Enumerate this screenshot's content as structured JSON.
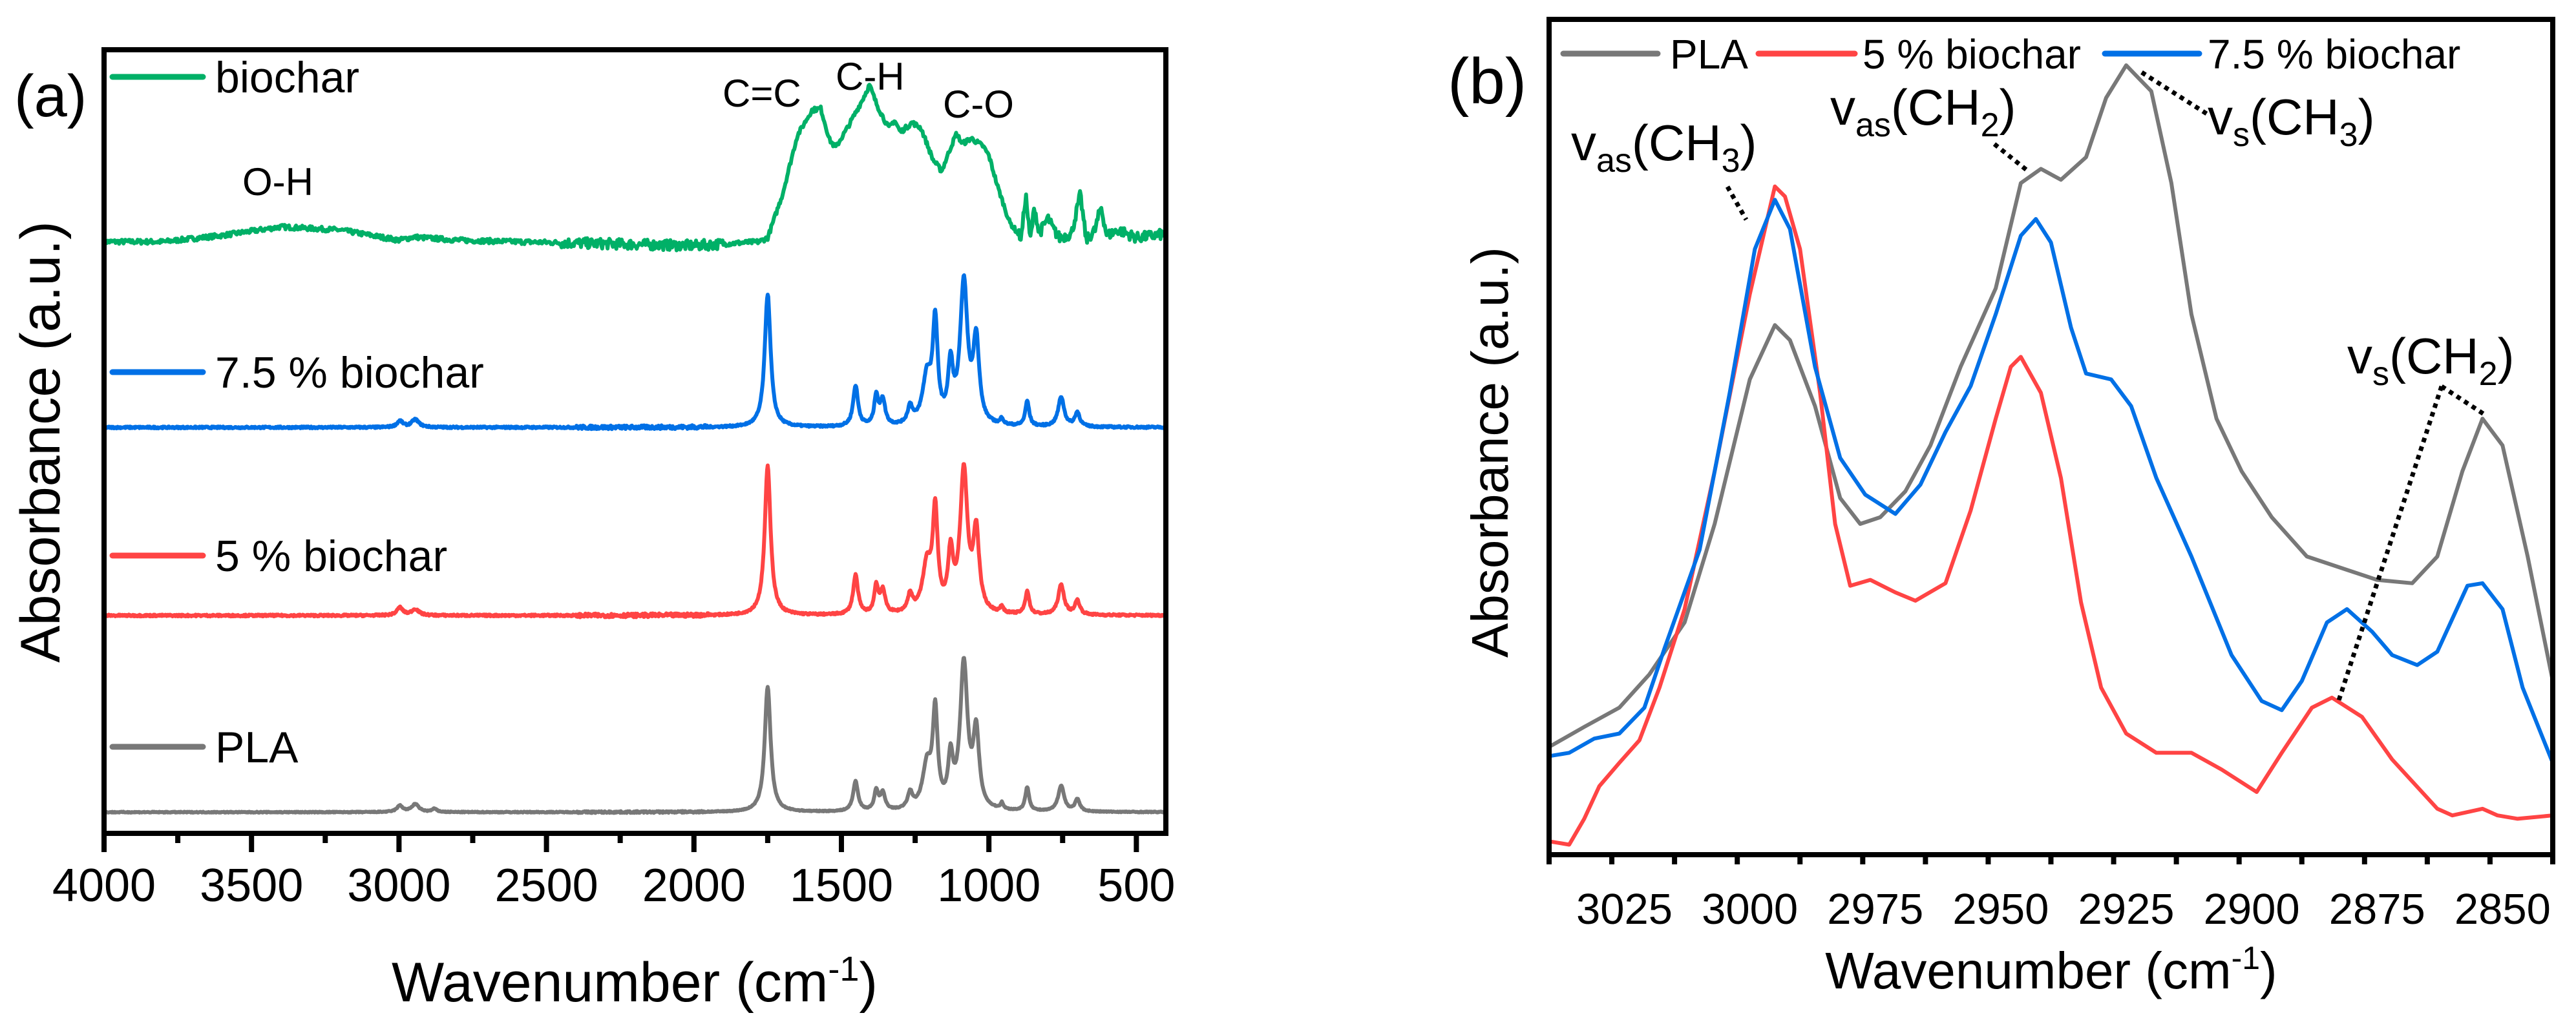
{
  "chart_data": [
    {
      "panel_label": "(a)",
      "type": "line",
      "xlabel_main": "Wavenumber (cm",
      "xlabel_sup": "-1",
      "xlabel_end": ")",
      "ylabel": "Absorbance (a.u.)",
      "xlim": [
        4000,
        400
      ],
      "ylim": [
        0,
        10
      ],
      "x_ticks": [
        4000,
        3500,
        3000,
        2500,
        2000,
        1500,
        1000,
        500
      ],
      "x_tick_labels": [
        "4000",
        "3500",
        "3000",
        "2500",
        "2000",
        "1500",
        "1000",
        "500"
      ],
      "x_minor_step": 250,
      "grid": false,
      "legend_placement": "inline-left",
      "annotations": [
        {
          "text": "O-H",
          "x": 3350
        },
        {
          "text": "C=C",
          "x": 1660
        },
        {
          "text": "C-H",
          "x": 1400
        },
        {
          "text": "C-O",
          "x": 1080
        }
      ],
      "series": [
        {
          "name": "biochar",
          "color": "#00b067",
          "offset": 7.55,
          "noise": 0.03,
          "points": [
            [
              4000,
              0
            ],
            [
              3800,
              0
            ],
            [
              3600,
              0.08
            ],
            [
              3400,
              0.19
            ],
            [
              3200,
              0.15
            ],
            [
              3000,
              0.02
            ],
            [
              2950,
              0.06
            ],
            [
              2800,
              0.02
            ],
            [
              2600,
              0
            ],
            [
              2000,
              -0.05
            ],
            [
              1780,
              0
            ],
            [
              1750,
              0.05
            ],
            [
              1700,
              0.6
            ],
            [
              1650,
              1.35
            ],
            [
              1600,
              1.68
            ],
            [
              1570,
              1.7
            ],
            [
              1540,
              1.3
            ],
            [
              1520,
              1.2
            ],
            [
              1480,
              1.45
            ],
            [
              1430,
              1.8
            ],
            [
              1405,
              2.0
            ],
            [
              1380,
              1.75
            ],
            [
              1340,
              1.45
            ],
            [
              1320,
              1.55
            ],
            [
              1300,
              1.4
            ],
            [
              1260,
              1.52
            ],
            [
              1230,
              1.45
            ],
            [
              1190,
              1.05
            ],
            [
              1160,
              0.9
            ],
            [
              1130,
              1.2
            ],
            [
              1110,
              1.38
            ],
            [
              1090,
              1.25
            ],
            [
              1060,
              1.32
            ],
            [
              1020,
              1.22
            ],
            [
              1000,
              1.1
            ],
            [
              970,
              0.7
            ],
            [
              930,
              0.25
            ],
            [
              890,
              0.05
            ],
            [
              875,
              0.6
            ],
            [
              860,
              0.02
            ],
            [
              845,
              0.45
            ],
            [
              830,
              0.1
            ],
            [
              800,
              0.3
            ],
            [
              780,
              0.15
            ],
            [
              760,
              0.05
            ],
            [
              720,
              0.1
            ],
            [
              690,
              0.6
            ],
            [
              670,
              0.02
            ],
            [
              640,
              0.15
            ],
            [
              620,
              0.45
            ],
            [
              600,
              0.08
            ],
            [
              560,
              0.15
            ],
            [
              500,
              0.05
            ],
            [
              400,
              0.1
            ]
          ]
        },
        {
          "name": "7.5 % biochar",
          "color": "#0070e6",
          "offset": 5.18,
          "noise": 0.012,
          "peaks": [
            [
              1750,
              1.7,
              12
            ],
            [
              1452,
              0.52,
              10
            ],
            [
              1382,
              0.38,
              8
            ],
            [
              1360,
              0.33,
              10
            ],
            [
              1267,
              0.22,
              10
            ],
            [
              1210,
              0.6,
              18
            ],
            [
              1182,
              1.25,
              10
            ],
            [
              1130,
              0.7,
              10
            ],
            [
              1085,
              1.8,
              15
            ],
            [
              1043,
              1.05,
              12
            ],
            [
              956,
              0.08,
              6
            ],
            [
              870,
              0.32,
              8
            ],
            [
              755,
              0.38,
              12
            ],
            [
              700,
              0.18,
              10
            ],
            [
              2997,
              0.08,
              12
            ],
            [
              2945,
              0.1,
              15
            ]
          ]
        },
        {
          "name": "5 % biochar",
          "color": "#ff4444",
          "offset": 2.78,
          "noise": 0.012,
          "peaks": [
            [
              1750,
              1.9,
              12
            ],
            [
              1452,
              0.5,
              10
            ],
            [
              1382,
              0.35,
              8
            ],
            [
              1360,
              0.3,
              10
            ],
            [
              1267,
              0.22,
              10
            ],
            [
              1210,
              0.6,
              18
            ],
            [
              1182,
              1.25,
              10
            ],
            [
              1130,
              0.7,
              10
            ],
            [
              1085,
              1.8,
              15
            ],
            [
              1043,
              1.0,
              12
            ],
            [
              956,
              0.08,
              6
            ],
            [
              870,
              0.3,
              8
            ],
            [
              755,
              0.38,
              12
            ],
            [
              700,
              0.18,
              10
            ],
            [
              2997,
              0.1,
              12
            ],
            [
              2945,
              0.08,
              15
            ]
          ]
        },
        {
          "name": "PLA",
          "color": "#787878",
          "offset": 0.27,
          "noise": 0.006,
          "peaks": [
            [
              1750,
              1.6,
              12
            ],
            [
              1452,
              0.38,
              10
            ],
            [
              1382,
              0.25,
              8
            ],
            [
              1360,
              0.22,
              10
            ],
            [
              1267,
              0.2,
              10
            ],
            [
              1210,
              0.55,
              18
            ],
            [
              1182,
              1.2,
              10
            ],
            [
              1130,
              0.6,
              10
            ],
            [
              1085,
              1.85,
              15
            ],
            [
              1043,
              0.95,
              12
            ],
            [
              956,
              0.08,
              6
            ],
            [
              870,
              0.3,
              8
            ],
            [
              755,
              0.33,
              12
            ],
            [
              700,
              0.15,
              10
            ],
            [
              2997,
              0.08,
              12
            ],
            [
              2945,
              0.1,
              15
            ],
            [
              2880,
              0.04,
              10
            ]
          ]
        }
      ]
    },
    {
      "panel_label": "(b)",
      "type": "line",
      "xlabel_main": "Wavenumber (cm",
      "xlabel_sup": "-1",
      "xlabel_end": ")",
      "ylabel": "Absorbance (a.u.)",
      "xlim": [
        3040,
        2840
      ],
      "ylim": [
        0,
        1
      ],
      "x_ticks": [
        3025,
        3000,
        2975,
        2950,
        2925,
        2900,
        2875,
        2850
      ],
      "x_tick_labels": [
        "3025",
        "3000",
        "2975",
        "2950",
        "2925",
        "2900",
        "2875",
        "2850"
      ],
      "x_minor_step": 12.5,
      "grid": false,
      "legend_placement": "top",
      "annotations": [
        {
          "main": "v",
          "sub": "as",
          "body": "(CH",
          "sub2": "3",
          "end": ")",
          "x": 2998
        },
        {
          "main": "v",
          "sub": "as",
          "body": "(CH",
          "sub2": "2",
          "end": ")",
          "x": 2943
        },
        {
          "main": "v",
          "sub": "s",
          "body": "(CH",
          "sub2": "3",
          "end": ")",
          "x": 2925
        },
        {
          "main": "v",
          "sub": "s",
          "body": "(CH",
          "sub2": "2",
          "end": ")",
          "x": 2853
        }
      ],
      "series": [
        {
          "name": "PLA",
          "color": "#787878",
          "points": [
            [
              3040,
              0.129
            ],
            [
              3033,
              0.153
            ],
            [
              3026,
              0.176
            ],
            [
              3020,
              0.216
            ],
            [
              3013,
              0.278
            ],
            [
              3007,
              0.396
            ],
            [
              3000,
              0.569
            ],
            [
              2995,
              0.634
            ],
            [
              2992,
              0.616
            ],
            [
              2987,
              0.537
            ],
            [
              2982,
              0.427
            ],
            [
              2978,
              0.396
            ],
            [
              2974,
              0.404
            ],
            [
              2969,
              0.435
            ],
            [
              2964,
              0.49
            ],
            [
              2958,
              0.584
            ],
            [
              2951,
              0.678
            ],
            [
              2946,
              0.804
            ],
            [
              2942,
              0.821
            ],
            [
              2938,
              0.808
            ],
            [
              2933,
              0.835
            ],
            [
              2929,
              0.906
            ],
            [
              2925,
              0.945
            ],
            [
              2920,
              0.914
            ],
            [
              2916,
              0.804
            ],
            [
              2912,
              0.647
            ],
            [
              2907,
              0.522
            ],
            [
              2902,
              0.459
            ],
            [
              2896,
              0.404
            ],
            [
              2889,
              0.357
            ],
            [
              2881,
              0.341
            ],
            [
              2875,
              0.329
            ],
            [
              2868,
              0.325
            ],
            [
              2863,
              0.357
            ],
            [
              2858,
              0.459
            ],
            [
              2854,
              0.522
            ],
            [
              2850,
              0.49
            ],
            [
              2845,
              0.357
            ],
            [
              2840,
              0.208
            ]
          ]
        },
        {
          "name": "5 % biochar",
          "color": "#ff4444",
          "points": [
            [
              3040,
              0.016
            ],
            [
              3036,
              0.012
            ],
            [
              3033,
              0.043
            ],
            [
              3030,
              0.082
            ],
            [
              3026,
              0.11
            ],
            [
              3022,
              0.137
            ],
            [
              3018,
              0.2
            ],
            [
              3013,
              0.294
            ],
            [
              3007,
              0.459
            ],
            [
              3000,
              0.671
            ],
            [
              2995,
              0.8
            ],
            [
              2993,
              0.788
            ],
            [
              2990,
              0.725
            ],
            [
              2986,
              0.553
            ],
            [
              2983,
              0.396
            ],
            [
              2980,
              0.322
            ],
            [
              2976,
              0.329
            ],
            [
              2971,
              0.314
            ],
            [
              2967,
              0.304
            ],
            [
              2961,
              0.325
            ],
            [
              2956,
              0.412
            ],
            [
              2951,
              0.522
            ],
            [
              2948,
              0.584
            ],
            [
              2946,
              0.596
            ],
            [
              2942,
              0.553
            ],
            [
              2938,
              0.451
            ],
            [
              2934,
              0.302
            ],
            [
              2930,
              0.2
            ],
            [
              2925,
              0.145
            ],
            [
              2919,
              0.122
            ],
            [
              2912,
              0.122
            ],
            [
              2906,
              0.102
            ],
            [
              2899,
              0.075
            ],
            [
              2894,
              0.122
            ],
            [
              2888,
              0.176
            ],
            [
              2884,
              0.188
            ],
            [
              2878,
              0.165
            ],
            [
              2872,
              0.114
            ],
            [
              2863,
              0.055
            ],
            [
              2860,
              0.047
            ],
            [
              2854,
              0.055
            ],
            [
              2851,
              0.047
            ],
            [
              2847,
              0.043
            ],
            [
              2840,
              0.047
            ]
          ]
        },
        {
          "name": "7.5 % biochar",
          "color": "#0070e6",
          "points": [
            [
              3040,
              0.118
            ],
            [
              3036,
              0.122
            ],
            [
              3031,
              0.139
            ],
            [
              3026,
              0.145
            ],
            [
              3021,
              0.176
            ],
            [
              3017,
              0.247
            ],
            [
              3010,
              0.365
            ],
            [
              3004,
              0.553
            ],
            [
              2999,
              0.725
            ],
            [
              2995,
              0.784
            ],
            [
              2992,
              0.749
            ],
            [
              2987,
              0.584
            ],
            [
              2982,
              0.475
            ],
            [
              2977,
              0.431
            ],
            [
              2971,
              0.408
            ],
            [
              2966,
              0.443
            ],
            [
              2961,
              0.506
            ],
            [
              2956,
              0.561
            ],
            [
              2951,
              0.647
            ],
            [
              2946,
              0.741
            ],
            [
              2943,
              0.761
            ],
            [
              2940,
              0.733
            ],
            [
              2936,
              0.631
            ],
            [
              2933,
              0.576
            ],
            [
              2928,
              0.569
            ],
            [
              2924,
              0.537
            ],
            [
              2919,
              0.451
            ],
            [
              2912,
              0.357
            ],
            [
              2904,
              0.239
            ],
            [
              2898,
              0.184
            ],
            [
              2894,
              0.173
            ],
            [
              2890,
              0.208
            ],
            [
              2885,
              0.278
            ],
            [
              2881,
              0.294
            ],
            [
              2876,
              0.267
            ],
            [
              2872,
              0.239
            ],
            [
              2867,
              0.227
            ],
            [
              2863,
              0.243
            ],
            [
              2857,
              0.322
            ],
            [
              2854,
              0.325
            ],
            [
              2850,
              0.294
            ],
            [
              2846,
              0.2
            ],
            [
              2840,
              0.11
            ]
          ]
        }
      ]
    }
  ]
}
